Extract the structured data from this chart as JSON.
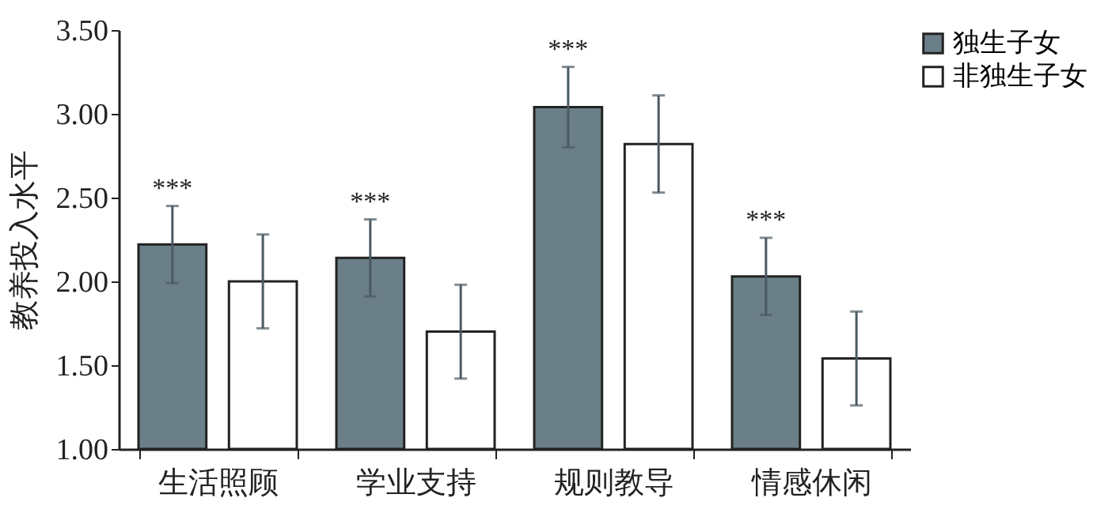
{
  "chart_data": {
    "type": "bar",
    "ylabel": "教养投入水平",
    "categories": [
      "生活照顾",
      "学业支持",
      "规则教导",
      "情感休闲"
    ],
    "series": [
      {
        "name": "独生子女",
        "color": "#6b7f88",
        "values": [
          2.22,
          2.14,
          3.04,
          2.03
        ],
        "errors": [
          0.23,
          0.23,
          0.24,
          0.23
        ]
      },
      {
        "name": "非独生子女",
        "color": "#ffffff",
        "values": [
          2.0,
          1.7,
          2.82,
          1.54
        ],
        "errors": [
          0.28,
          0.28,
          0.29,
          0.28
        ]
      }
    ],
    "annotations": [
      "***",
      "***",
      "***",
      "***"
    ],
    "ylim": [
      1,
      3.5
    ],
    "yticks": [
      {
        "value": 1,
        "label": "1.00"
      },
      {
        "value": 1.5,
        "label": "1.50"
      },
      {
        "value": 2,
        "label": "2.00"
      },
      {
        "value": 2.5,
        "label": "2.50"
      },
      {
        "value": 3,
        "label": "3.00"
      },
      {
        "value": 3.5,
        "label": "3.50"
      }
    ],
    "grid": false,
    "legend": "top right"
  }
}
